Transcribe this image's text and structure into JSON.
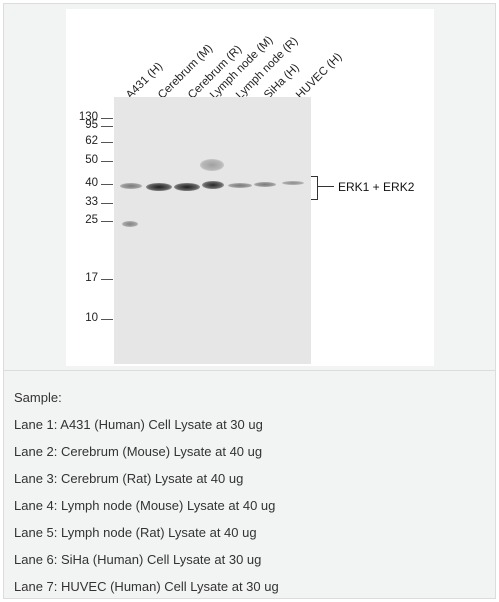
{
  "figure": {
    "lane_labels": [
      "A431 (H)",
      "Cerebrum (M)",
      "Cerebrum (R)",
      "Lymph node (M)",
      "Lymph node (R)",
      "SiHa (H)",
      "HUVEC (H)"
    ],
    "mw_markers": [
      "130",
      "95",
      "62",
      "50",
      "40",
      "33",
      "25",
      "17",
      "10"
    ],
    "protein_label": "ERK1 + ERK2"
  },
  "caption": {
    "heading": "Sample:",
    "lanes": [
      "Lane 1: A431 (Human) Cell Lysate at 30 ug",
      "Lane 2: Cerebrum (Mouse) Lysate at 40 ug",
      "Lane 3: Cerebrum (Rat) Lysate at 40 ug",
      "Lane 4: Lymph node (Mouse) Lysate at 40 ug",
      "Lane 5: Lymph node (Rat) Lysate at 40 ug",
      "Lane 6: SiHa (Human) Cell Lysate at 30 ug",
      "Lane 7: HUVEC (Human) Cell Lysate at 30 ug"
    ]
  }
}
